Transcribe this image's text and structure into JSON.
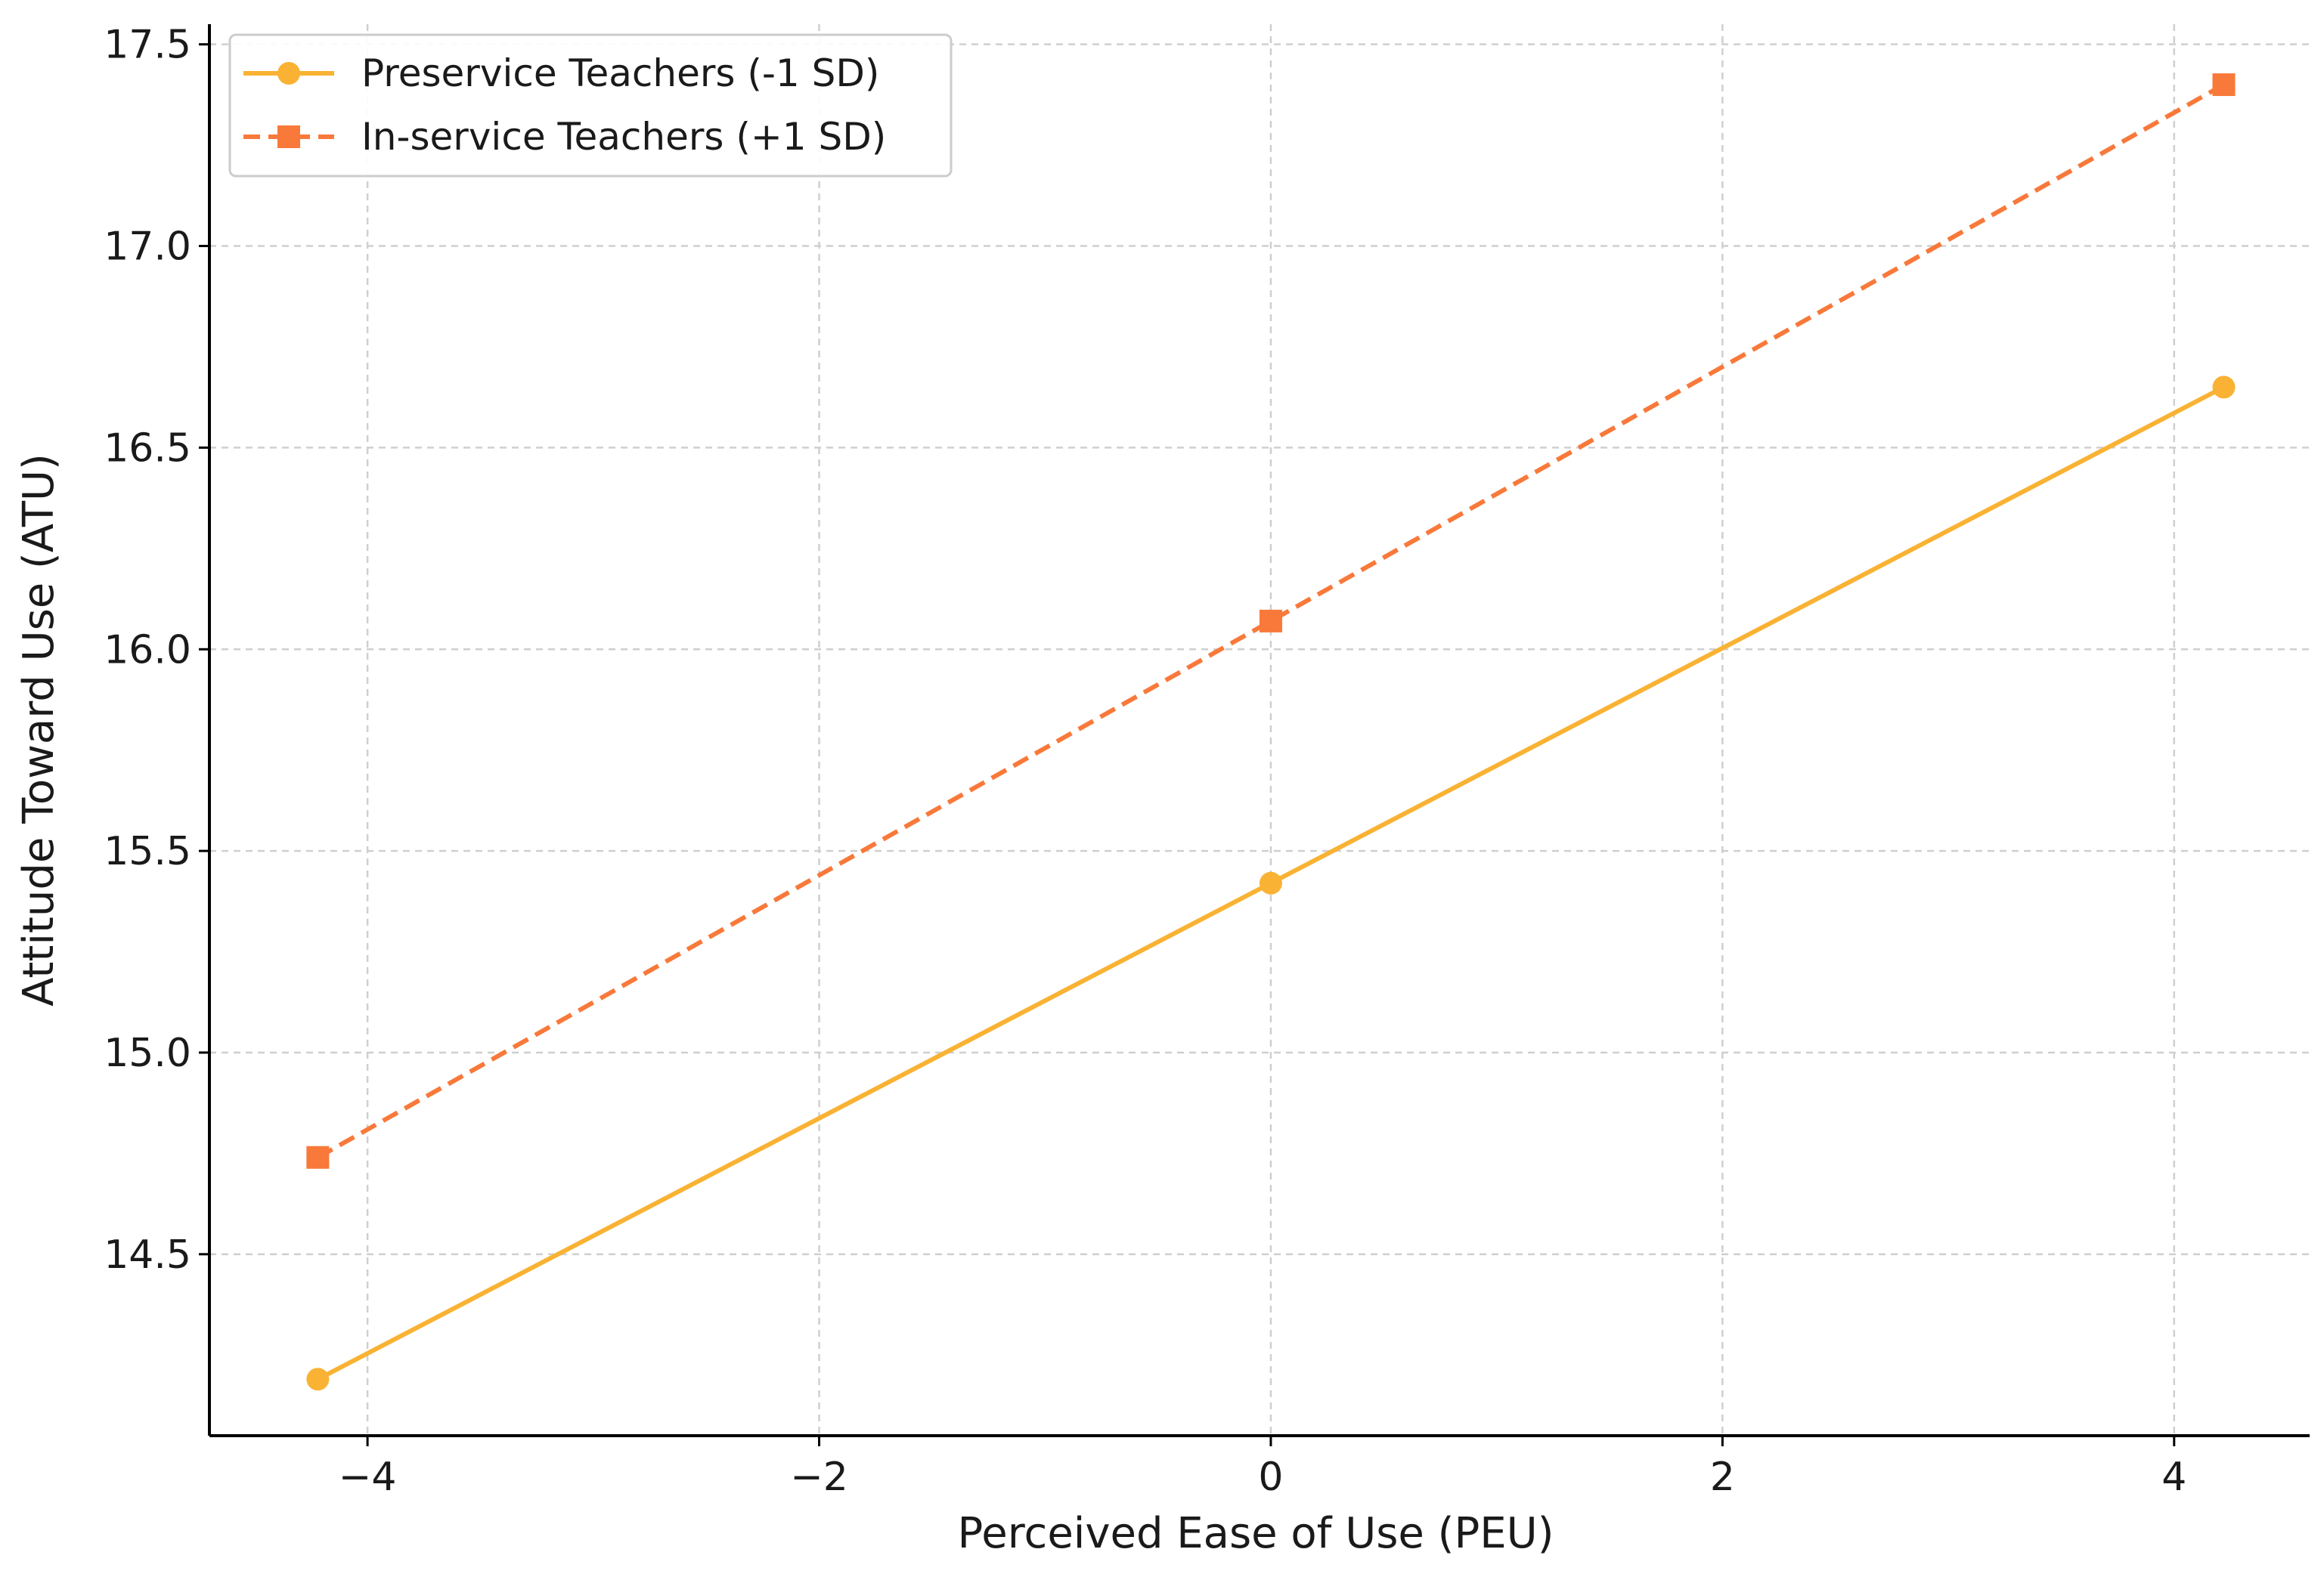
{
  "chart_data": {
    "type": "line",
    "title": "",
    "xlabel": "Perceived Ease of Use (PEU)",
    "ylabel": "Attitude Toward Use (ATU)",
    "xlim": [
      -4.7,
      4.6
    ],
    "ylim": [
      14.05,
      17.55
    ],
    "xticks": [
      -4,
      -2,
      0,
      2,
      4
    ],
    "xtick_labels": [
      "−4",
      "−2",
      "0",
      "2",
      "4"
    ],
    "yticks": [
      14.5,
      15.0,
      15.5,
      16.0,
      16.5,
      17.0,
      17.5
    ],
    "ytick_labels": [
      "14.5",
      "15.0",
      "15.5",
      "16.0",
      "16.5",
      "17.0",
      "17.5"
    ],
    "grid": true,
    "legend_position": "top-left",
    "series": [
      {
        "name": "Preservice Teachers (-1 SD)",
        "color": "#F9B233",
        "line_style": "solid",
        "marker": "circle",
        "x": [
          -4.22,
          0,
          4.22
        ],
        "y": [
          14.19,
          15.42,
          16.65
        ]
      },
      {
        "name": "In-service Teachers (+1 SD)",
        "color": "#F8793A",
        "line_style": "dashed",
        "marker": "square",
        "x": [
          -4.22,
          0,
          4.22
        ],
        "y": [
          14.74,
          16.07,
          17.4
        ]
      }
    ]
  }
}
